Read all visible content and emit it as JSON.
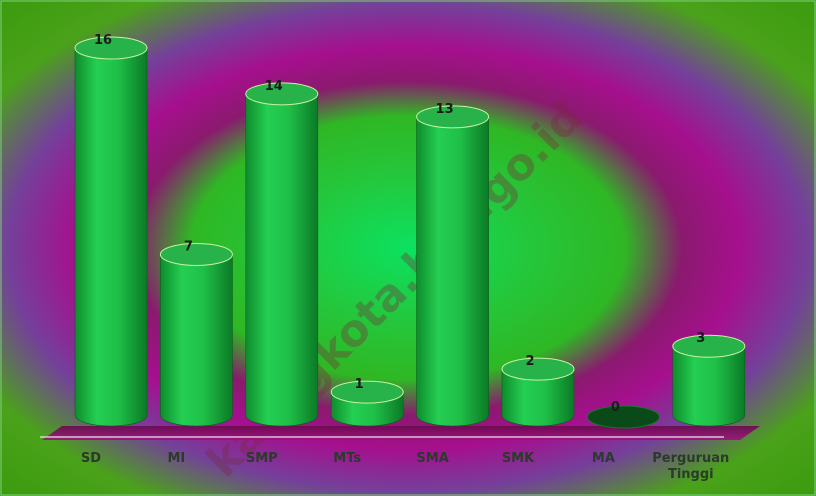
{
  "chart_data": {
    "type": "bar",
    "categories": [
      "SD",
      "MI",
      "SMP",
      "MTs",
      "SMA",
      "SMK",
      "MA",
      "Perguruan Tinggi"
    ],
    "values": [
      16,
      7,
      14,
      1,
      13,
      2,
      0,
      3
    ],
    "ylim": [
      0,
      16
    ],
    "grid": false,
    "legend": "none",
    "title": "",
    "xlabel": "",
    "ylabel": ""
  },
  "watermark": "kaangkota.bps.go.id",
  "colors": {
    "bar_fill": "#1fc24a",
    "bar_dark": "#0a7a24",
    "bar_top": "#27b34a",
    "floor": "#8c0a63",
    "background_outer": "#3a9a10",
    "background_mid": "#9c108a",
    "background_inner": "#10d060"
  }
}
